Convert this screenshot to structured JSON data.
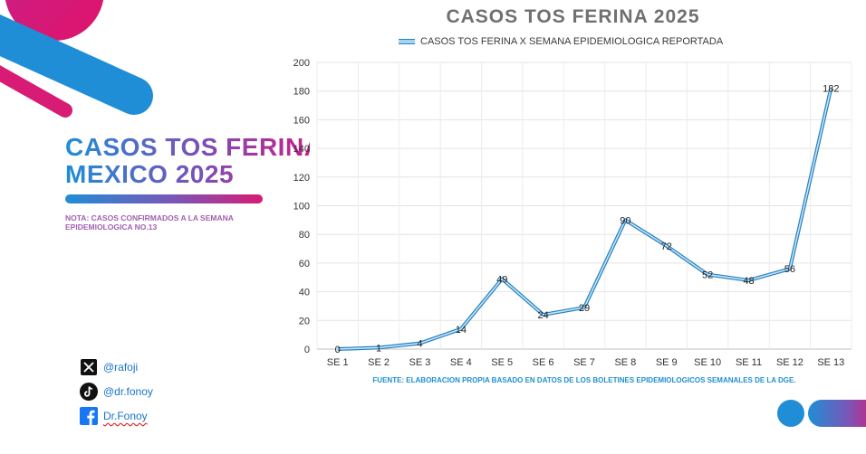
{
  "left_panel": {
    "title_line1": "CASOS TOS FERINA",
    "title_line2": "MEXICO 2025",
    "note": "NOTA: CASOS CONFIRMADOS A LA SEMANA EPIDEMIOLOGICA NO.13"
  },
  "social": {
    "x_handle": "@rafoji",
    "tiktok_handle": "@dr.fonoy",
    "facebook_handle": "Dr.Fonoy",
    "icons": [
      "x-logo-icon",
      "tiktok-logo-icon",
      "facebook-logo-icon"
    ]
  },
  "colors": {
    "blue": "#1f8ed6",
    "magenta": "#d81b74",
    "line_fill": "#9fd6f2",
    "line_stroke": "#2a7fbf"
  },
  "chart_data": {
    "type": "line",
    "title": "CASOS TOS FERINA 2025",
    "categories": [
      "SE 1",
      "SE 2",
      "SE 3",
      "SE 4",
      "SE 5",
      "SE 6",
      "SE 7",
      "SE 8",
      "SE 9",
      "SE 10",
      "SE 11",
      "SE 12",
      "SE 13"
    ],
    "series": [
      {
        "name": "CASOS TOS FERINA X SEMANA EPIDEMIOLOGICA REPORTADA",
        "values": [
          0,
          1,
          4,
          14,
          49,
          24,
          29,
          90,
          72,
          52,
          48,
          56,
          182
        ]
      }
    ],
    "ylim": [
      0,
      200
    ],
    "yticks": [
      0,
      20,
      40,
      60,
      80,
      100,
      120,
      140,
      160,
      180,
      200
    ],
    "legend_position": "top",
    "grid": true,
    "source": "FUENTE: ELABORACION PROPIA BASADO EN DATOS DE LOS BOLETINES EPIDEMIOLOGICOS SEMANALES DE LA DGE."
  }
}
